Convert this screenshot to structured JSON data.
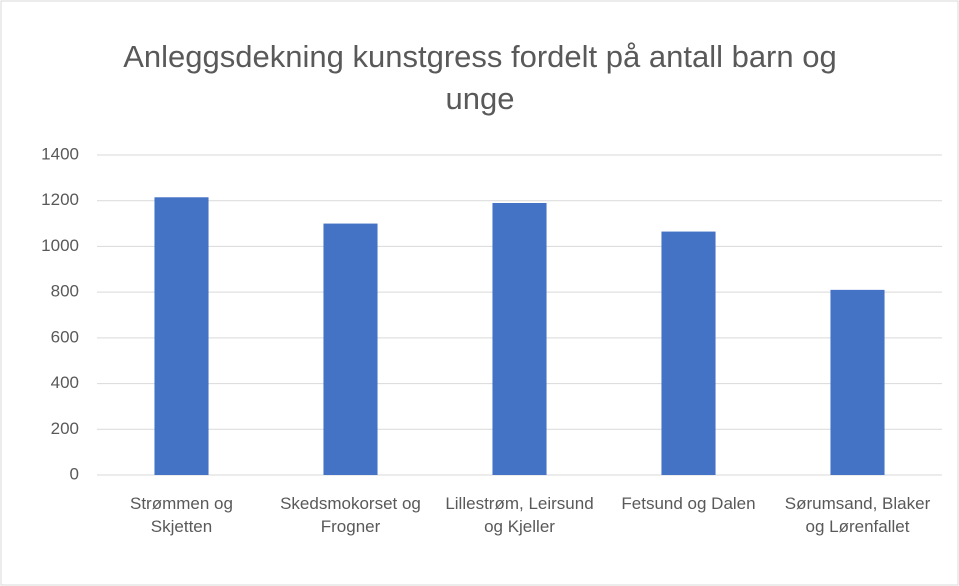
{
  "chart_data": {
    "type": "bar",
    "title": "Anleggsdekning kunstgress fordelt på antall barn og unge",
    "categories": [
      "Strømmen og Skjetten",
      "Skedsmokorset og Frogner",
      "Lillestrøm, Leirsund og Kjeller",
      "Fetsund og Dalen",
      "Sørumsand, Blaker og Lørenfallet"
    ],
    "values": [
      1215,
      1100,
      1190,
      1065,
      810
    ],
    "color": "#4472c4",
    "ylim": [
      0,
      1400
    ],
    "yticks": [
      0,
      200,
      400,
      600,
      800,
      1000,
      1200,
      1400
    ],
    "grid": true
  }
}
